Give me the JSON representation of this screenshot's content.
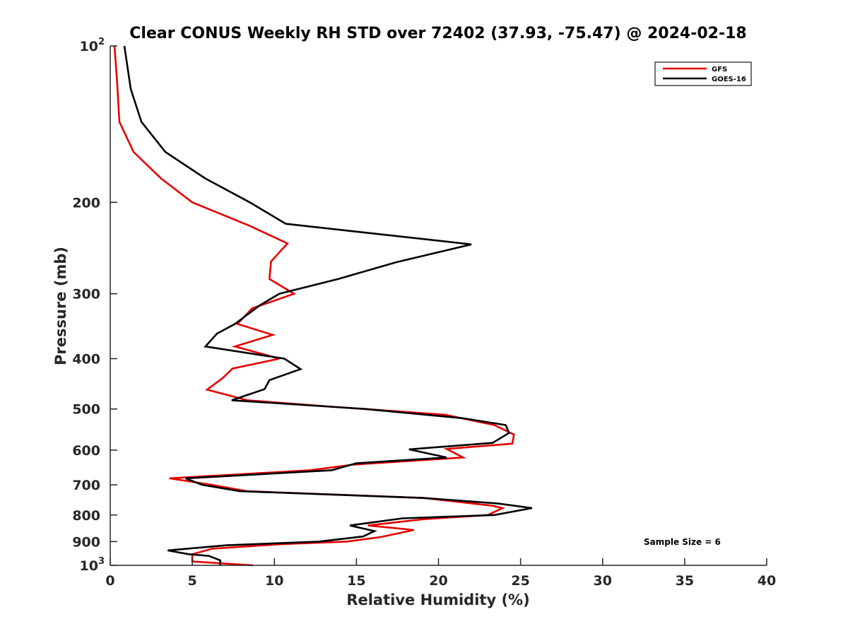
{
  "chart_data": {
    "type": "line",
    "title": "Clear CONUS Weekly RH STD over 72402 (37.93, -75.47) @ 2024-02-18",
    "xlabel": "Relative Humidity (%)",
    "ylabel": "Pressure (mb)",
    "xlim": [
      0,
      40
    ],
    "ylim": [
      100,
      1000
    ],
    "yscale": "log",
    "yreversed": true,
    "grid": false,
    "legend_position": "top-right",
    "x_ticks": [
      0,
      5,
      10,
      15,
      20,
      25,
      30,
      35,
      40
    ],
    "x_tick_labels": [
      "0",
      "5",
      "10",
      "15",
      "20",
      "25",
      "30",
      "35",
      "40"
    ],
    "y_ticks": [
      {
        "value": 100,
        "base": "10",
        "exp": "2"
      },
      {
        "value": 200,
        "label": "200"
      },
      {
        "value": 300,
        "label": "300"
      },
      {
        "value": 400,
        "label": "400"
      },
      {
        "value": 500,
        "label": "500"
      },
      {
        "value": 600,
        "label": "600"
      },
      {
        "value": 700,
        "label": "700"
      },
      {
        "value": 800,
        "label": "800"
      },
      {
        "value": 900,
        "label": "900"
      },
      {
        "value": 1000,
        "base": "10",
        "exp": "3"
      }
    ],
    "annotation": "Sample Size = 6",
    "series": [
      {
        "name": "GFS",
        "color": "#e50000",
        "points": [
          [
            0.26,
            100
          ],
          [
            0.4,
            115
          ],
          [
            0.56,
            140
          ],
          [
            1.42,
            160
          ],
          [
            3.1,
            180
          ],
          [
            5.0,
            200
          ],
          [
            8.5,
            222
          ],
          [
            10.8,
            240
          ],
          [
            9.8,
            260
          ],
          [
            9.7,
            281
          ],
          [
            11.2,
            300
          ],
          [
            8.65,
            320
          ],
          [
            7.75,
            343
          ],
          [
            9.9,
            360
          ],
          [
            7.6,
            379
          ],
          [
            10.3,
            400
          ],
          [
            7.45,
            418
          ],
          [
            6.85,
            436
          ],
          [
            5.9,
            459
          ],
          [
            8.35,
            481
          ],
          [
            13.5,
            495
          ],
          [
            20.4,
            513
          ],
          [
            23.4,
            537
          ],
          [
            24.6,
            560
          ],
          [
            24.5,
            583
          ],
          [
            20.5,
            597
          ],
          [
            21.5,
            620
          ],
          [
            14.8,
            640
          ],
          [
            12.2,
            656
          ],
          [
            3.6,
            680
          ],
          [
            6.2,
            700
          ],
          [
            8.35,
            720
          ],
          [
            19.1,
            742
          ],
          [
            23.3,
            768
          ],
          [
            23.9,
            776
          ],
          [
            23.0,
            800
          ],
          [
            19.1,
            815
          ],
          [
            15.7,
            838
          ],
          [
            18.5,
            855
          ],
          [
            16.5,
            882
          ],
          [
            14.4,
            900
          ],
          [
            10.5,
            910
          ],
          [
            6.2,
            929
          ],
          [
            5.0,
            952
          ],
          [
            5.0,
            983
          ],
          [
            8.7,
            1000
          ]
        ]
      },
      {
        "name": "GOES-16",
        "color": "#000000",
        "points": [
          [
            0.86,
            100
          ],
          [
            1.25,
            121
          ],
          [
            1.9,
            140
          ],
          [
            3.36,
            160
          ],
          [
            5.8,
            180
          ],
          [
            8.5,
            200
          ],
          [
            10.7,
            220
          ],
          [
            22.0,
            241
          ],
          [
            17.4,
            261
          ],
          [
            13.9,
            281
          ],
          [
            10.3,
            300
          ],
          [
            9.1,
            316
          ],
          [
            7.6,
            343
          ],
          [
            6.5,
            358
          ],
          [
            5.8,
            379
          ],
          [
            10.6,
            400
          ],
          [
            11.6,
            419
          ],
          [
            9.7,
            440
          ],
          [
            9.4,
            458
          ],
          [
            7.4,
            481
          ],
          [
            15.5,
            500
          ],
          [
            21.5,
            521
          ],
          [
            24.1,
            537
          ],
          [
            24.3,
            556
          ],
          [
            23.3,
            581
          ],
          [
            18.2,
            598
          ],
          [
            20.5,
            620
          ],
          [
            15.0,
            636
          ],
          [
            13.5,
            656
          ],
          [
            4.6,
            680
          ],
          [
            5.6,
            700
          ],
          [
            7.9,
            720
          ],
          [
            19.1,
            742
          ],
          [
            23.6,
            760
          ],
          [
            25.7,
            776
          ],
          [
            23.4,
            800
          ],
          [
            17.8,
            812
          ],
          [
            14.6,
            838
          ],
          [
            16.1,
            859
          ],
          [
            15.4,
            880
          ],
          [
            12.7,
            900
          ],
          [
            7.1,
            915
          ],
          [
            3.5,
            936
          ],
          [
            4.8,
            952
          ],
          [
            6.0,
            959
          ],
          [
            6.7,
            978
          ],
          [
            6.7,
            1000
          ]
        ]
      }
    ]
  }
}
